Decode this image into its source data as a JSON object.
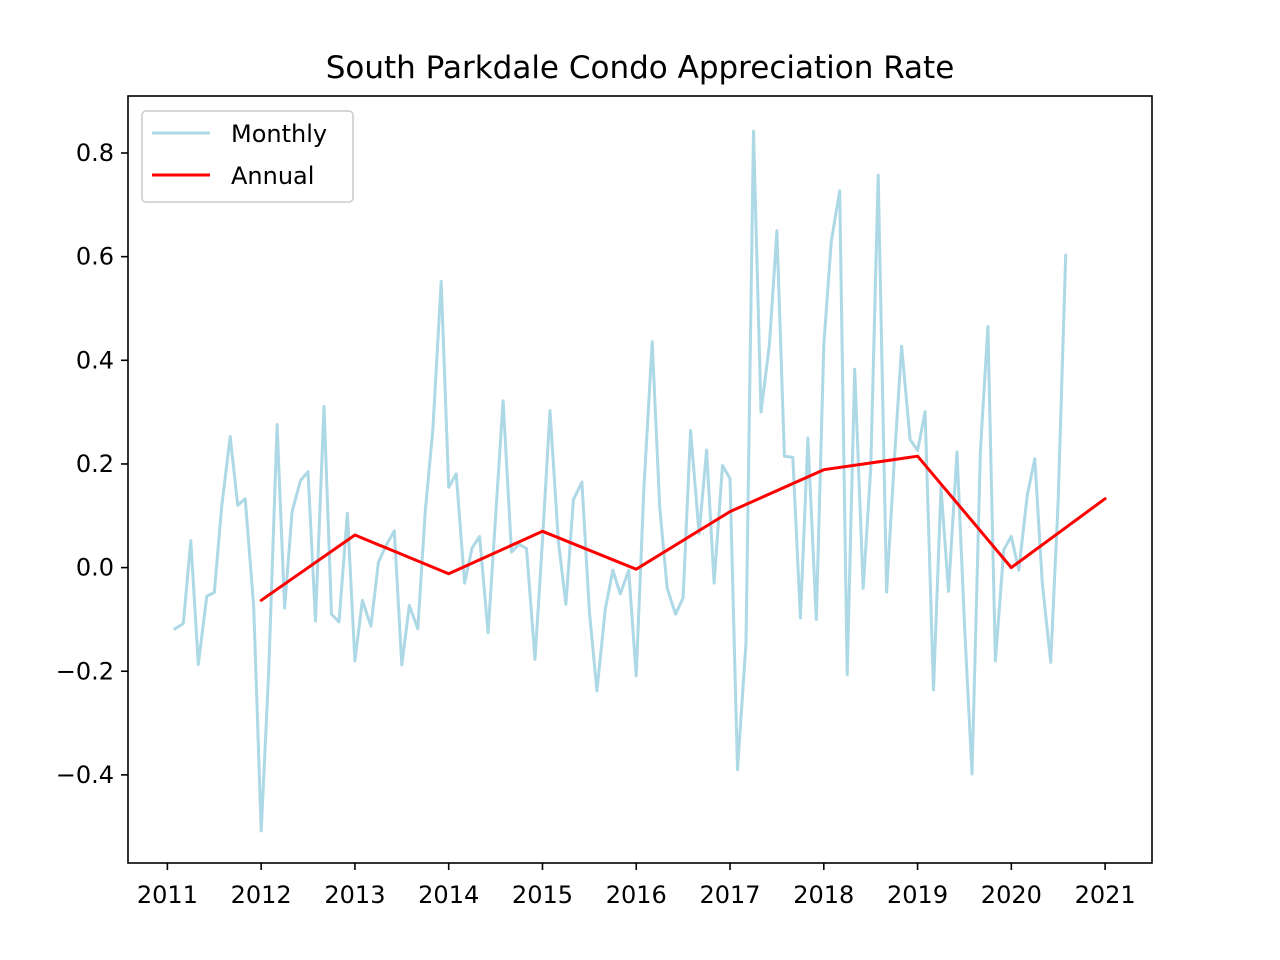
{
  "chart_data": {
    "type": "line",
    "title": "South Parkdale Condo Appreciation Rate",
    "xlabel": "",
    "ylabel": "",
    "xlim": [
      2010.58,
      2021.5
    ],
    "ylim": [
      -0.57,
      0.91
    ],
    "x_ticks": [
      2011,
      2012,
      2013,
      2014,
      2015,
      2016,
      2017,
      2018,
      2019,
      2020,
      2021
    ],
    "x_tick_labels": [
      "2011",
      "2012",
      "2013",
      "2014",
      "2015",
      "2016",
      "2017",
      "2018",
      "2019",
      "2020",
      "2021"
    ],
    "y_ticks": [
      -0.4,
      -0.2,
      0.0,
      0.2,
      0.4,
      0.6,
      0.8
    ],
    "y_tick_labels": [
      "−0.4",
      "−0.2",
      "0.0",
      "0.2",
      "0.4",
      "0.6",
      "0.8"
    ],
    "grid": false,
    "legend_position": "top-left",
    "series": [
      {
        "name": "Monthly",
        "color": "#add8e6",
        "x": [
          2011.08,
          2011.17,
          2011.25,
          2011.33,
          2011.42,
          2011.5,
          2011.58,
          2011.67,
          2011.75,
          2011.83,
          2011.92,
          2012.0,
          2012.08,
          2012.17,
          2012.25,
          2012.33,
          2012.42,
          2012.5,
          2012.58,
          2012.67,
          2012.75,
          2012.83,
          2012.92,
          2013.0,
          2013.08,
          2013.17,
          2013.25,
          2013.33,
          2013.42,
          2013.5,
          2013.58,
          2013.67,
          2013.75,
          2013.83,
          2013.92,
          2014.0,
          2014.08,
          2014.17,
          2014.25,
          2014.33,
          2014.42,
          2014.5,
          2014.58,
          2014.67,
          2014.75,
          2014.83,
          2014.92,
          2015.0,
          2015.08,
          2015.17,
          2015.25,
          2015.33,
          2015.42,
          2015.5,
          2015.58,
          2015.67,
          2015.75,
          2015.83,
          2015.92,
          2016.0,
          2016.08,
          2016.17,
          2016.25,
          2016.33,
          2016.42,
          2016.5,
          2016.58,
          2016.67,
          2016.75,
          2016.83,
          2016.92,
          2017.0,
          2017.08,
          2017.17,
          2017.25,
          2017.33,
          2017.42,
          2017.5,
          2017.58,
          2017.67,
          2017.75,
          2017.83,
          2017.92,
          2018.0,
          2018.08,
          2018.17,
          2018.25,
          2018.33,
          2018.42,
          2018.5,
          2018.58,
          2018.67,
          2018.75,
          2018.83,
          2018.92,
          2019.0,
          2019.08,
          2019.17,
          2019.25,
          2019.33,
          2019.42,
          2019.5,
          2019.58,
          2019.67,
          2019.75,
          2019.83,
          2019.92,
          2020.0,
          2020.08,
          2020.17,
          2020.25,
          2020.33,
          2020.42,
          2020.5,
          2020.58
        ],
        "y": [
          -0.118,
          -0.108,
          0.052,
          -0.187,
          -0.055,
          -0.048,
          0.12,
          0.253,
          0.12,
          0.133,
          -0.075,
          -0.508,
          -0.2,
          0.276,
          -0.078,
          0.108,
          0.168,
          0.185,
          -0.103,
          0.311,
          -0.09,
          -0.105,
          0.105,
          -0.18,
          -0.063,
          -0.113,
          0.01,
          0.042,
          0.071,
          -0.188,
          -0.073,
          -0.118,
          0.11,
          0.265,
          0.552,
          0.155,
          0.181,
          -0.03,
          0.038,
          0.06,
          -0.126,
          0.098,
          0.322,
          0.03,
          0.045,
          0.037,
          -0.177,
          0.053,
          0.303,
          0.05,
          -0.071,
          0.131,
          0.165,
          -0.085,
          -0.238,
          -0.08,
          -0.005,
          -0.051,
          -0.005,
          -0.209,
          0.15,
          0.436,
          0.117,
          -0.04,
          -0.09,
          -0.058,
          0.265,
          0.065,
          0.227,
          -0.03,
          0.197,
          0.172,
          -0.39,
          -0.145,
          0.842,
          0.3,
          0.43,
          0.65,
          0.215,
          0.213,
          -0.097,
          0.25,
          -0.1,
          0.43,
          0.63,
          0.727,
          -0.207,
          0.383,
          -0.04,
          0.19,
          0.757,
          -0.047,
          0.2,
          0.427,
          0.247,
          0.226,
          0.301,
          -0.236,
          0.155,
          -0.046,
          0.223,
          -0.11,
          -0.398,
          0.225,
          0.465,
          -0.18,
          0.035,
          0.06,
          -0.005,
          0.14,
          0.21,
          -0.03,
          -0.183,
          0.13,
          0.603
        ]
      },
      {
        "name": "Annual",
        "color": "#ff0000",
        "x": [
          2012,
          2013,
          2014,
          2015,
          2016,
          2017,
          2018,
          2019,
          2020,
          2021
        ],
        "y": [
          -0.063,
          0.063,
          -0.012,
          0.07,
          -0.003,
          0.108,
          0.189,
          0.215,
          0.0,
          0.133
        ]
      }
    ]
  }
}
